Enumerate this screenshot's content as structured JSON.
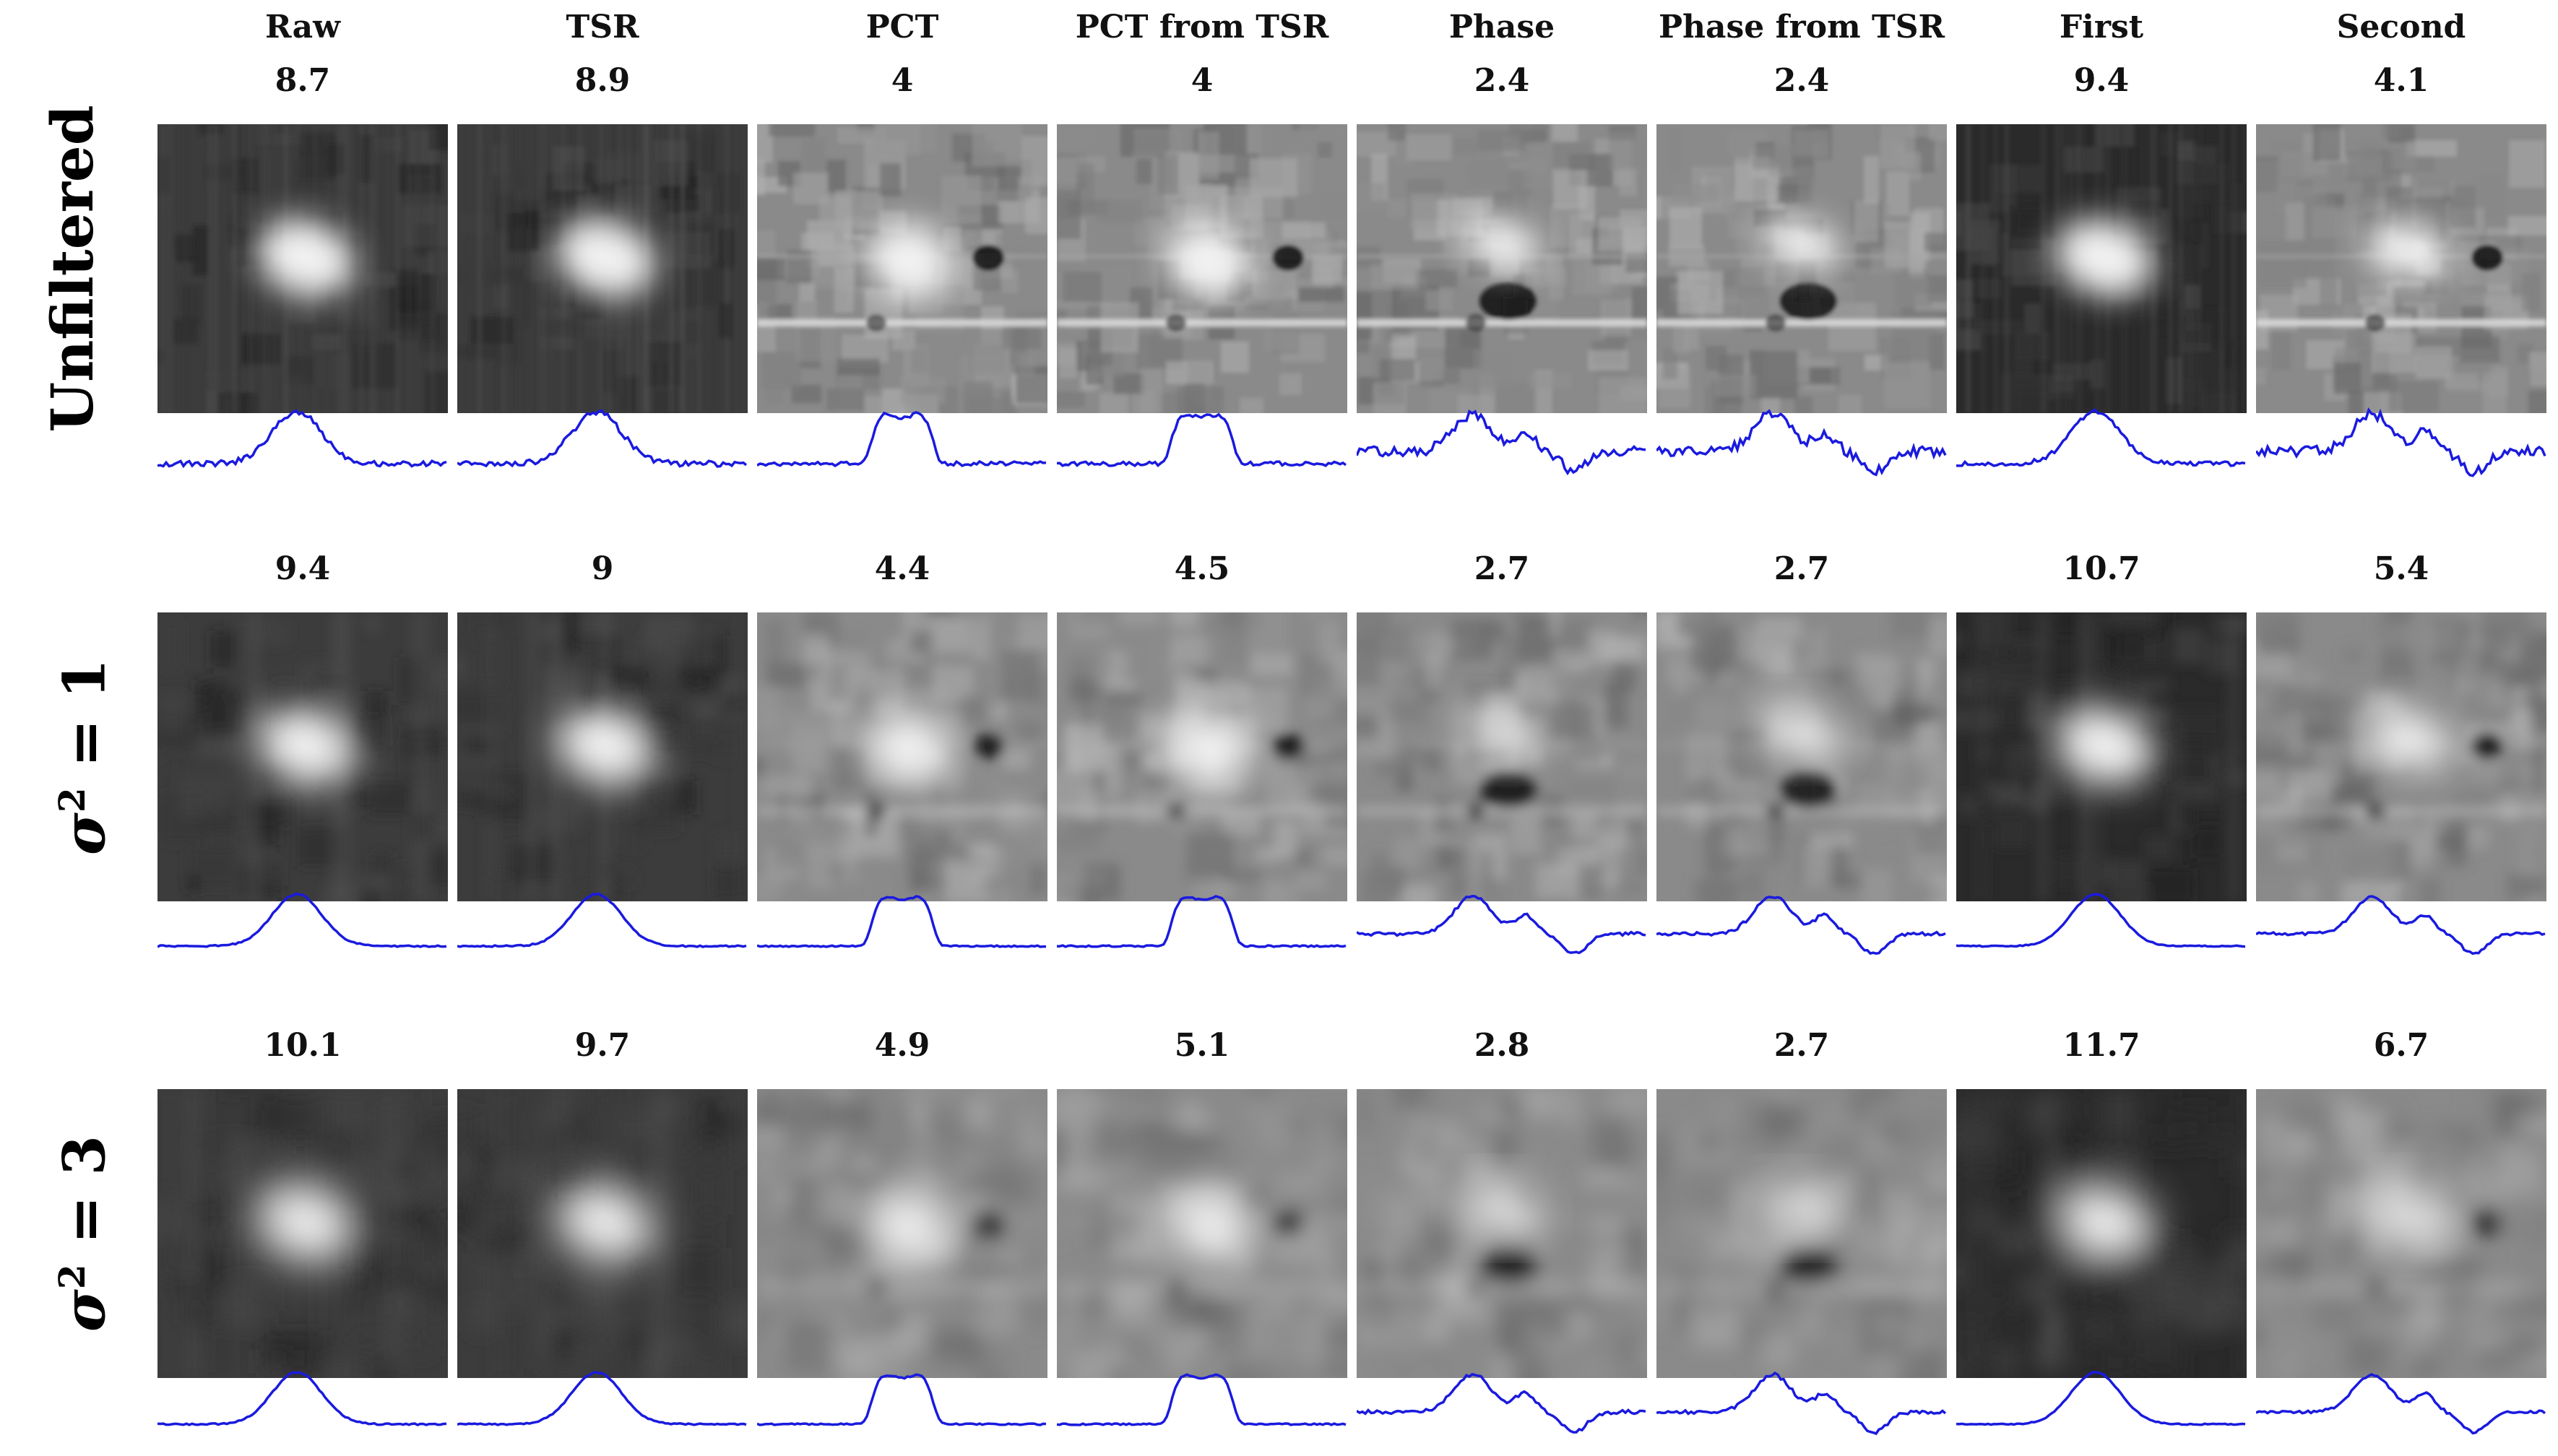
{
  "columns": [
    "Raw",
    "TSR",
    "PCT",
    "PCT from TSR",
    "Phase",
    "Phase from TSR",
    "First",
    "Second"
  ],
  "rows": [
    {
      "label": "Unfiltered",
      "scores": [
        "8.7",
        "8.9",
        "4",
        "4",
        "2.4",
        "2.4",
        "9.4",
        "4.1"
      ]
    },
    {
      "label_symbol": "σ",
      "label_exponent": "2",
      "label_rest": " = 1",
      "scores": [
        "9.4",
        "9",
        "4.4",
        "4.5",
        "2.7",
        "2.7",
        "10.7",
        "5.4"
      ]
    },
    {
      "label_symbol": "σ",
      "label_exponent": "2",
      "label_rest": " = 3",
      "scores": [
        "10.1",
        "9.7",
        "4.9",
        "5.1",
        "2.8",
        "2.7",
        "11.7",
        "6.7"
      ]
    }
  ],
  "colors": {
    "profile_line": "#1a1adf",
    "background": "#ffffff"
  },
  "tile_types": [
    "dark",
    "dark",
    "gray",
    "gray",
    "gray",
    "gray",
    "dark",
    "gray"
  ]
}
